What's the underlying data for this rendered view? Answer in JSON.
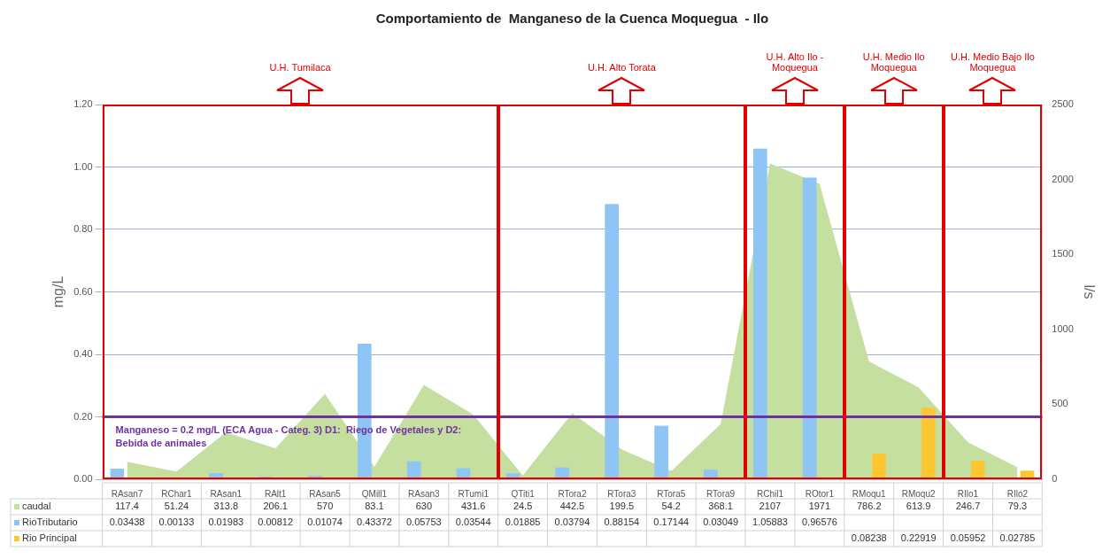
{
  "chart_data": {
    "type": "bar",
    "title": "Comportamiento de  Manganeso de la Cuenca Moquegua  - Ilo",
    "ylabel": "mg/L",
    "y2label": "l/s",
    "categories": [
      "RAsan7",
      "RChar1",
      "RAsan1",
      "RAlt1",
      "RAsan5",
      "QMill1",
      "RAsan3",
      "RTumi1",
      "QTiti1",
      "RTora2",
      "RTora3",
      "RTora5",
      "RTora9",
      "RChil1",
      "ROtor1",
      "RMoqu1",
      "RMoqu2",
      "RIlo1",
      "RIlo2"
    ],
    "series": [
      {
        "name": "caudal",
        "type": "area",
        "axis": "y2",
        "color": "#c4dfa0",
        "values": [
          117.4,
          51.24,
          313.8,
          206.1,
          570,
          83.1,
          630,
          431.6,
          24.5,
          442.5,
          199.5,
          54.2,
          368.1,
          2107,
          1971,
          786.2,
          613.9,
          246.7,
          79.3
        ]
      },
      {
        "name": "RioTributario",
        "color": "#8ec5f4",
        "values": [
          0.03438,
          0.00133,
          0.01983,
          0.00812,
          0.01074,
          0.43372,
          0.05753,
          0.03544,
          0.01885,
          0.03794,
          0.88154,
          0.17144,
          0.03049,
          1.05883,
          0.96576,
          null,
          null,
          null,
          null
        ]
      },
      {
        "name": "Rio Principal",
        "color": "#fdc733",
        "values": [
          null,
          null,
          null,
          null,
          null,
          null,
          null,
          null,
          null,
          null,
          null,
          null,
          null,
          null,
          null,
          0.08238,
          0.22919,
          0.05952,
          0.02785
        ]
      }
    ],
    "ylim": [
      0,
      1.2
    ],
    "yticks": [
      {
        "value": 0,
        "label": "0.00"
      },
      {
        "value": 0.2,
        "label": "0.20"
      },
      {
        "value": 0.4,
        "label": "0.40"
      },
      {
        "value": 0.6,
        "label": "0.60"
      },
      {
        "value": 0.8,
        "label": "0.80"
      },
      {
        "value": 1,
        "label": "1.00"
      },
      {
        "value": 1.2,
        "label": "1.20"
      }
    ],
    "y2lim": [
      0,
      2500
    ],
    "y2ticks": [
      0,
      500,
      1000,
      1500,
      2000,
      2500
    ],
    "ref_lines": [
      {
        "axis": "y",
        "value": 0.2,
        "color": "#7030a0",
        "label": "Manganeso = 0.2 mg/L (ECA Agua - Categ. 3) D1:  Riego de Vegetales y D2: Bebida de animales"
      }
    ],
    "annotations": [
      "U.H. Tumilaca",
      "U.H. Alto Torata",
      "U.H. Alto Ilo - Moquegua",
      "U.H. Medio Ilo Moquegua",
      "U.H. Medio Bajo Ilo Moquegua"
    ],
    "data_labels": true,
    "grid": "y",
    "legend": "bottom"
  }
}
